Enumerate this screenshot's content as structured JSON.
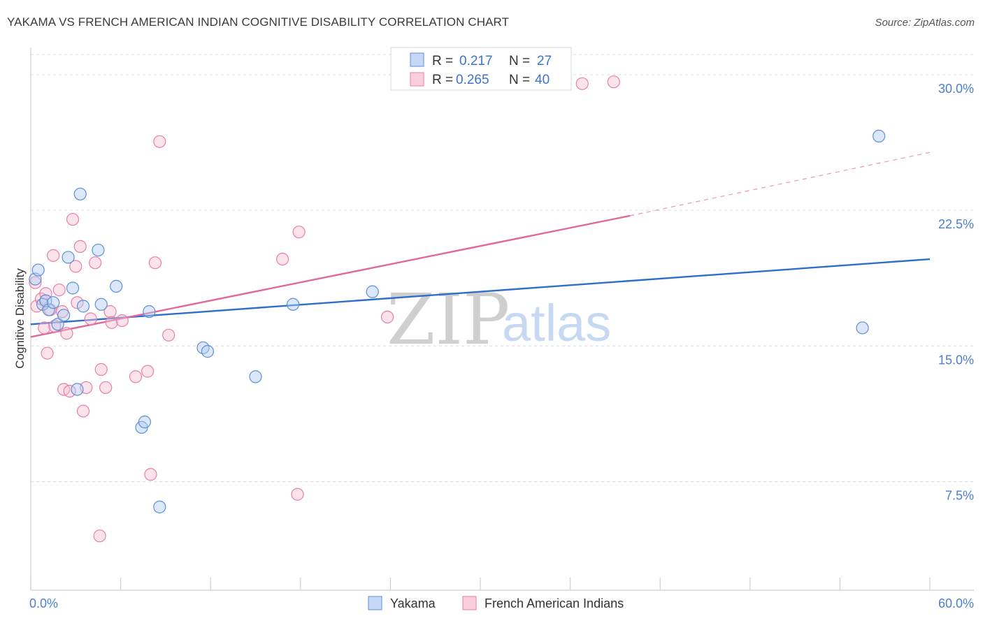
{
  "title": "YAKAMA VS FRENCH AMERICAN INDIAN COGNITIVE DISABILITY CORRELATION CHART",
  "source": "Source: ZipAtlas.com",
  "watermark": {
    "zip": "ZIP",
    "atlas": "atlas"
  },
  "chart_data": {
    "type": "scatter",
    "title": "YAKAMA VS FRENCH AMERICAN INDIAN COGNITIVE DISABILITY CORRELATION CHART",
    "xlabel": "",
    "ylabel": "Cognitive Disability",
    "xlim": [
      0,
      60
    ],
    "ylim": [
      1.5,
      31.5
    ],
    "x_tick_labels": [
      "0.0%",
      "60.0%"
    ],
    "y_ticks": [
      {
        "value": 7.5,
        "label": "7.5%"
      },
      {
        "value": 15.0,
        "label": "15.0%"
      },
      {
        "value": 22.5,
        "label": "22.5%"
      },
      {
        "value": 30.0,
        "label": "30.0%"
      }
    ],
    "grid": true,
    "legend_placement": "top-center",
    "colors": {
      "yakama": "#5b8fd6",
      "french": "#e97fa4",
      "yakama_line": "#2e6fcc",
      "french_line": "#e0689a",
      "tick": "#4a7fd0"
    },
    "series": [
      {
        "name": "Yakama",
        "r": "0.217",
        "n": "27",
        "points": [
          [
            0.3,
            18.7
          ],
          [
            0.5,
            19.2
          ],
          [
            0.8,
            17.3
          ],
          [
            1.0,
            17.5
          ],
          [
            1.2,
            17.0
          ],
          [
            1.5,
            17.4
          ],
          [
            1.8,
            16.2
          ],
          [
            2.2,
            16.7
          ],
          [
            2.5,
            19.9
          ],
          [
            2.8,
            18.2
          ],
          [
            3.1,
            12.6
          ],
          [
            3.3,
            23.4
          ],
          [
            3.5,
            17.2
          ],
          [
            4.5,
            20.3
          ],
          [
            4.7,
            17.3
          ],
          [
            5.7,
            18.3
          ],
          [
            7.4,
            10.5
          ],
          [
            7.6,
            10.8
          ],
          [
            7.9,
            16.9
          ],
          [
            8.6,
            6.1
          ],
          [
            11.5,
            14.9
          ],
          [
            11.8,
            14.7
          ],
          [
            15.0,
            13.3
          ],
          [
            17.5,
            17.3
          ],
          [
            22.8,
            18.0
          ],
          [
            55.5,
            16.0
          ],
          [
            56.6,
            26.6
          ]
        ],
        "trend": {
          "x0": 0,
          "y0": 16.2,
          "x1": 60,
          "y1": 19.8
        }
      },
      {
        "name": "French American Indians",
        "r": "0.265",
        "n": "40",
        "points": [
          [
            0.3,
            18.5
          ],
          [
            0.4,
            17.2
          ],
          [
            0.7,
            17.6
          ],
          [
            0.9,
            16.0
          ],
          [
            1.0,
            17.9
          ],
          [
            1.1,
            14.6
          ],
          [
            1.3,
            17.0
          ],
          [
            1.5,
            20.0
          ],
          [
            1.6,
            16.1
          ],
          [
            1.9,
            18.1
          ],
          [
            2.1,
            16.9
          ],
          [
            2.2,
            12.6
          ],
          [
            2.4,
            15.7
          ],
          [
            2.6,
            12.5
          ],
          [
            2.8,
            22.0
          ],
          [
            3.0,
            19.4
          ],
          [
            3.1,
            17.4
          ],
          [
            3.3,
            20.5
          ],
          [
            3.5,
            11.4
          ],
          [
            3.7,
            12.7
          ],
          [
            4.0,
            16.5
          ],
          [
            4.3,
            19.6
          ],
          [
            4.6,
            4.5
          ],
          [
            4.7,
            13.7
          ],
          [
            5.0,
            12.7
          ],
          [
            5.3,
            16.9
          ],
          [
            5.4,
            16.3
          ],
          [
            6.1,
            16.4
          ],
          [
            7.0,
            13.3
          ],
          [
            7.8,
            13.6
          ],
          [
            8.0,
            7.9
          ],
          [
            8.3,
            19.6
          ],
          [
            8.6,
            26.3
          ],
          [
            9.2,
            15.6
          ],
          [
            16.8,
            19.8
          ],
          [
            17.8,
            6.8
          ],
          [
            17.9,
            21.3
          ],
          [
            23.8,
            16.6
          ],
          [
            36.8,
            29.5
          ],
          [
            38.9,
            29.6
          ]
        ],
        "trend": {
          "x0": 0,
          "y0": 15.5,
          "x1": 40,
          "y1": 22.2,
          "dash_x1": 60,
          "dash_y1": 25.7
        }
      }
    ]
  },
  "legend": {
    "r_label": "R =",
    "n_label": "N ="
  }
}
